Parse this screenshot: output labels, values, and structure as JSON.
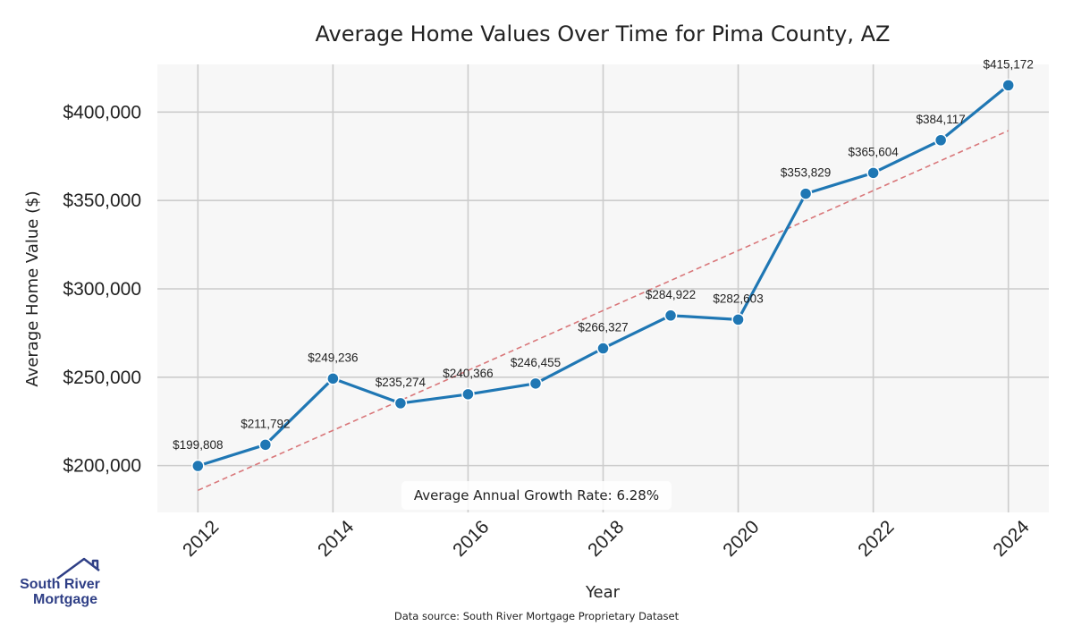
{
  "chart_data": {
    "type": "line",
    "title": "Average Home Values Over Time for Pima County, AZ",
    "xlabel": "Year",
    "ylabel": "Average Home Value ($)",
    "x": [
      2012,
      2013,
      2014,
      2015,
      2016,
      2017,
      2018,
      2019,
      2020,
      2021,
      2022,
      2023,
      2024
    ],
    "values": [
      199808,
      211792,
      249236,
      235274,
      240366,
      246455,
      266327,
      284922,
      282603,
      353829,
      365604,
      384117,
      415172
    ],
    "data_labels": [
      "$199,808",
      "$211,792",
      "$249,236",
      "$235,274",
      "$240,366",
      "$246,455",
      "$266,327",
      "$284,922",
      "$282,603",
      "$353,829",
      "$365,604",
      "$384,117",
      "$415,172"
    ],
    "xticks": [
      2012,
      2014,
      2016,
      2018,
      2020,
      2022,
      2024
    ],
    "xtick_labels": [
      "2012",
      "2014",
      "2016",
      "2018",
      "2020",
      "2022",
      "2024"
    ],
    "yticks": [
      200000,
      250000,
      300000,
      350000,
      400000
    ],
    "ytick_labels": [
      "$200,000",
      "$250,000",
      "$300,000",
      "$350,000",
      "$400,000"
    ],
    "xlim": [
      2011.4,
      2024.6
    ],
    "ylim": [
      173500,
      427000
    ],
    "trendline": {
      "x": [
        2012,
        2024
      ],
      "y": [
        186000,
        389500
      ]
    },
    "annotation": "Average Annual Growth Rate: 6.28%",
    "grid": true,
    "line_color": "#1f77b4",
    "trend_color": "#d9777a",
    "plot_bg": "#f7f7f7",
    "grid_color": "#cccccc"
  },
  "source": "Data source: South River Mortgage Proprietary Dataset",
  "logo": {
    "line1": "South River",
    "line2": "Mortgage",
    "color": "#2f3f86"
  }
}
